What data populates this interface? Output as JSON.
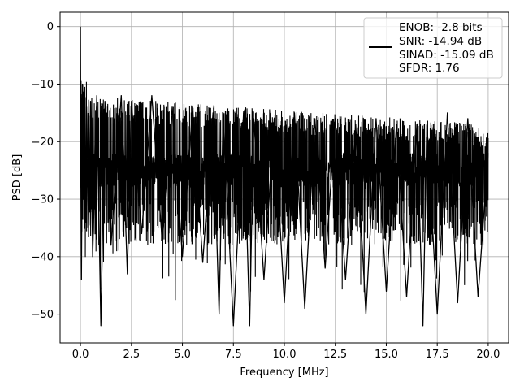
{
  "chart_data": {
    "type": "line",
    "title": "",
    "xlabel": "Frequency [MHz]",
    "ylabel": "PSD [dB]",
    "xlim": [
      -1.0,
      21.0
    ],
    "ylim": [
      -55,
      2.5
    ],
    "xticks": [
      0.0,
      2.5,
      5.0,
      7.5,
      10.0,
      12.5,
      15.0,
      17.5,
      20.0
    ],
    "xtick_labels": [
      "0.0",
      "2.5",
      "5.0",
      "7.5",
      "10.0",
      "12.5",
      "15.0",
      "17.5",
      "20.0"
    ],
    "yticks": [
      0,
      -10,
      -20,
      -30,
      -40,
      -50
    ],
    "ytick_labels": [
      "0",
      "−10",
      "−20",
      "−30",
      "−40",
      "−50"
    ],
    "grid": true,
    "legend_position": "top-right",
    "series": [
      {
        "color": "#000000",
        "x": [
          0.0,
          0.02,
          0.05,
          0.1,
          0.15,
          0.2,
          0.25,
          0.3,
          0.4,
          0.5,
          0.6,
          0.8,
          1.0,
          1.2,
          1.5,
          2.0,
          2.3,
          2.5,
          3.0,
          3.5,
          4.0,
          4.5,
          5.0,
          5.5,
          6.0,
          6.5,
          6.8,
          7.0,
          7.5,
          8.0,
          8.3,
          8.5,
          9.0,
          9.5,
          10.0,
          10.5,
          11.0,
          11.5,
          12.0,
          12.5,
          13.0,
          13.5,
          14.0,
          14.5,
          15.0,
          15.5,
          16.0,
          16.5,
          16.8,
          17.0,
          17.5,
          18.0,
          18.5,
          19.0,
          19.5,
          20.0
        ],
        "y": [
          0,
          -25,
          -44,
          -10,
          -30,
          -12,
          -33,
          -14,
          -35,
          -13,
          -40,
          -12,
          -52,
          -13,
          -38,
          -12,
          -43,
          -13,
          -36,
          -12,
          -37,
          -14,
          -40,
          -14,
          -41,
          -15,
          -50,
          -15,
          -52,
          -15,
          -52,
          -16,
          -44,
          -16,
          -48,
          -15,
          -49,
          -16,
          -42,
          -16,
          -44,
          -17,
          -50,
          -16,
          -46,
          -17,
          -47,
          -17,
          -52,
          -17,
          -50,
          -15,
          -48,
          -16,
          -47,
          -22
        ]
      }
    ]
  },
  "legend": {
    "lines": [
      "ENOB: -2.8 bits",
      "SNR: -14.94 dB",
      "SINAD: -15.09 dB",
      "SFDR: 1.76"
    ]
  }
}
